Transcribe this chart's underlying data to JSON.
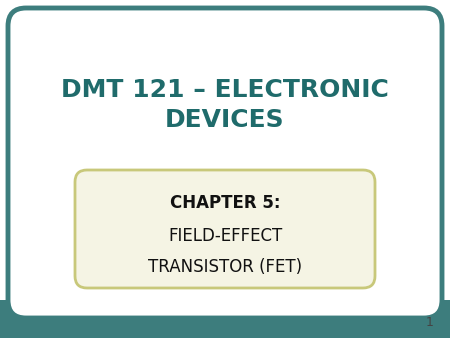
{
  "title_line1": "DMT 121 – ELECTRONIC",
  "title_line2": "DEVICES",
  "title_color": "#1f6b6b",
  "chapter_label": "CHAPTER 5:",
  "chapter_body_line1": "FIELD-EFFECT",
  "chapter_body_line2": "TRANSISTOR (FET)",
  "chapter_label_color": "#111111",
  "chapter_body_color": "#111111",
  "background_color": "#ffffff",
  "outer_border_color": "#3d7d7d",
  "inner_box_bg": "#f5f4e4",
  "inner_box_border_color": "#c8c87a",
  "slide_bg": "#ffffff",
  "slide_number": "1",
  "slide_number_color": "#444444",
  "teal_bar_color": "#3d7d7d",
  "title_fontsize": 18,
  "chapter_label_fontsize": 12,
  "chapter_body_fontsize": 12
}
